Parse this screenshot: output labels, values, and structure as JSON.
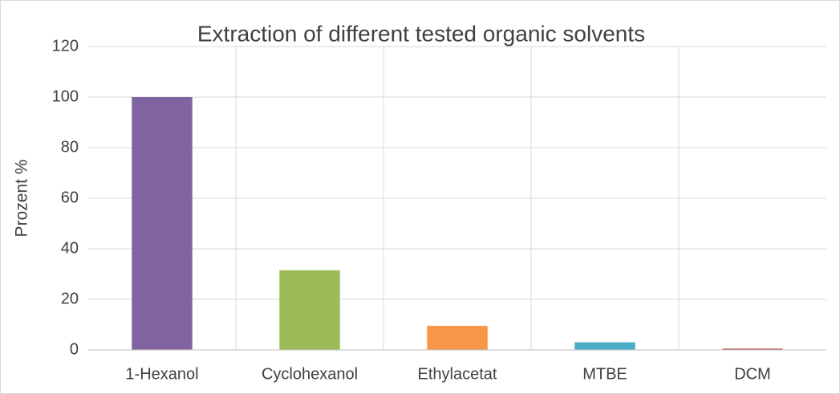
{
  "chart_data": {
    "type": "bar",
    "title": "Extraction of different tested organic solvents",
    "y_label": "Prozent %",
    "categories": [
      "1-Hexanol",
      "Cyclohexanol",
      "Ethylacetat",
      "MTBE",
      "DCM"
    ],
    "values": [
      100,
      31.5,
      9.5,
      3,
      0.5
    ],
    "colors": [
      "#8064a2",
      "#9bbb59",
      "#f79646",
      "#4bacc6",
      "#c0504d"
    ],
    "ylim": [
      0,
      120
    ],
    "yticks": [
      0,
      20,
      40,
      60,
      80,
      100,
      120
    ],
    "grid": true
  }
}
